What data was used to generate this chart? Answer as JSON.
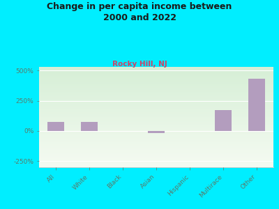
{
  "title": "Change in per capita income between\n2000 and 2022",
  "subtitle": "Rocky Hill, NJ",
  "categories": [
    "All",
    "White",
    "Black",
    "Asian",
    "Hispanic",
    "Multirace",
    "Other"
  ],
  "values": [
    75,
    75,
    2,
    -18,
    0,
    175,
    430
  ],
  "bar_color": "#b39dbe",
  "background_outer": "#00eeff",
  "background_plot": "#e8f5e3",
  "tick_color": "#5a7a6a",
  "subtitle_color": "#cc4466",
  "title_color": "#1a1a1a",
  "ylim": [
    -300,
    530
  ],
  "yticks": [
    -250,
    0,
    250,
    500
  ],
  "ytick_labels": [
    "-250%",
    "0%",
    "250%",
    "500%"
  ],
  "bar_width": 0.5
}
